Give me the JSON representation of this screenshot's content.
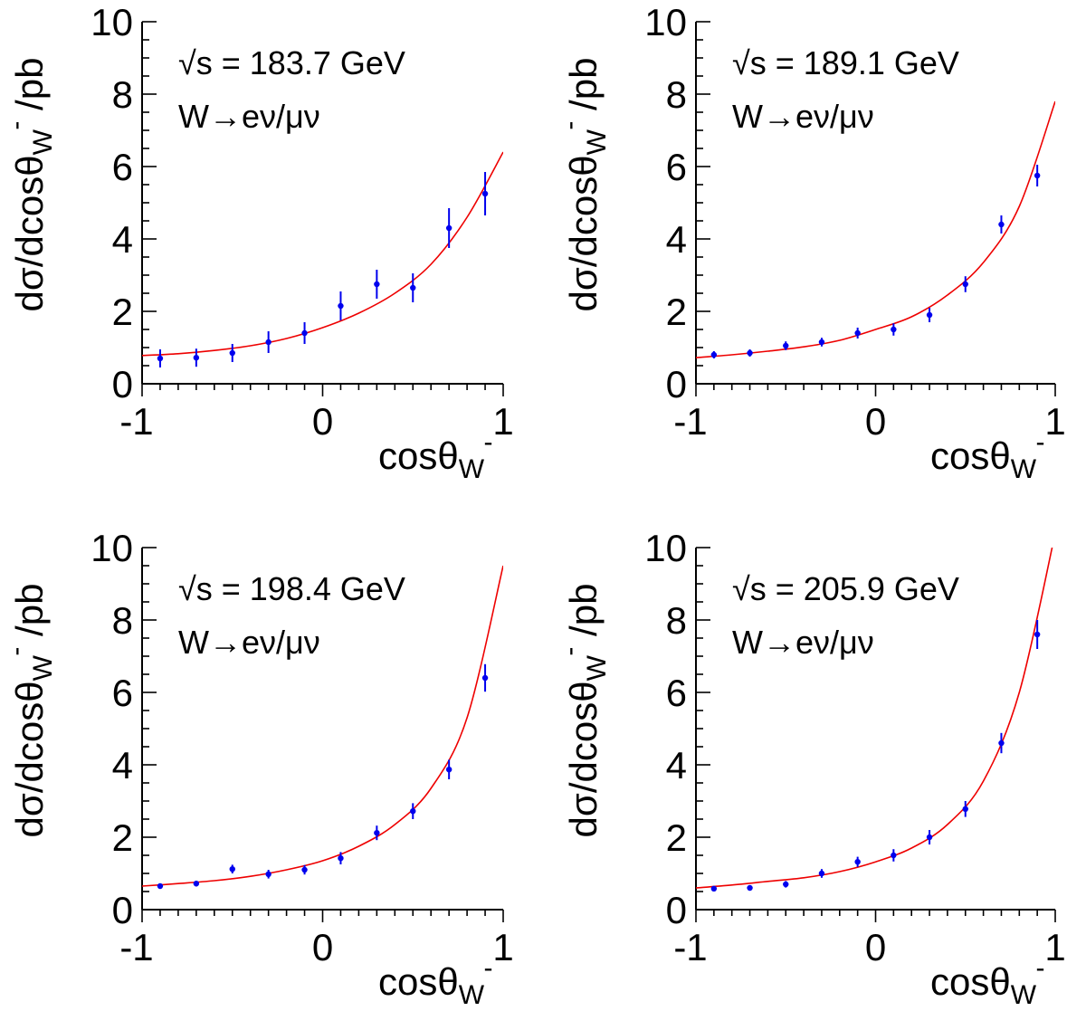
{
  "colors": {
    "axis": "#000000",
    "points": "#0000ee",
    "fit": "#ee0000"
  },
  "axes": {
    "ylabel": "dσ/dcosθ",
    "ylabel_sub": "W",
    "ylabel_sup": "-",
    "ylabel_unit": " /pb",
    "xlabel": "cosθ",
    "xlabel_sub": "W",
    "xlabel_sup": "-",
    "decay_label": "W→eν/μν",
    "xticks": [
      "-1",
      "0",
      "1"
    ],
    "yticks": [
      "0",
      "2",
      "4",
      "6",
      "8",
      "10"
    ]
  },
  "chart_data": [
    {
      "type": "scatter",
      "title": "√s = 183.7 GeV",
      "annotation": "W→eν/μν",
      "xlim": [
        -1,
        1
      ],
      "ylim": [
        0,
        10
      ],
      "x": [
        -0.9,
        -0.7,
        -0.5,
        -0.3,
        -0.1,
        0.1,
        0.3,
        0.5,
        0.7,
        0.9
      ],
      "y": [
        0.7,
        0.72,
        0.85,
        1.15,
        1.4,
        2.15,
        2.75,
        2.65,
        4.3,
        5.25
      ],
      "yerr": [
        0.25,
        0.25,
        0.25,
        0.3,
        0.3,
        0.4,
        0.4,
        0.4,
        0.55,
        0.6
      ],
      "fit": {
        "x": [
          -1,
          -0.8,
          -0.6,
          -0.4,
          -0.2,
          0,
          0.2,
          0.4,
          0.6,
          0.8,
          1
        ],
        "y": [
          0.78,
          0.83,
          0.92,
          1.05,
          1.25,
          1.55,
          1.95,
          2.5,
          3.3,
          4.6,
          6.4
        ]
      }
    },
    {
      "type": "scatter",
      "title": "√s = 189.1 GeV",
      "annotation": "W→eν/μν",
      "xlim": [
        -1,
        1
      ],
      "ylim": [
        0,
        10
      ],
      "x": [
        -0.9,
        -0.7,
        -0.5,
        -0.3,
        -0.1,
        0.1,
        0.3,
        0.5,
        0.7,
        0.9
      ],
      "y": [
        0.8,
        0.85,
        1.05,
        1.15,
        1.4,
        1.5,
        1.9,
        2.75,
        4.4,
        5.75
      ],
      "yerr": [
        0.1,
        0.1,
        0.12,
        0.12,
        0.15,
        0.17,
        0.2,
        0.22,
        0.25,
        0.3
      ],
      "fit": {
        "x": [
          -1,
          -0.8,
          -0.6,
          -0.4,
          -0.2,
          0,
          0.2,
          0.4,
          0.6,
          0.8,
          1
        ],
        "y": [
          0.72,
          0.8,
          0.9,
          1.02,
          1.2,
          1.5,
          1.85,
          2.45,
          3.35,
          4.9,
          7.8
        ]
      }
    },
    {
      "type": "scatter",
      "title": "√s = 198.4 GeV",
      "annotation": "W→eν/μν",
      "xlim": [
        -1,
        1
      ],
      "ylim": [
        0,
        10
      ],
      "x": [
        -0.9,
        -0.7,
        -0.5,
        -0.3,
        -0.1,
        0.1,
        0.3,
        0.5,
        0.7,
        0.9
      ],
      "y": [
        0.65,
        0.72,
        1.12,
        0.98,
        1.1,
        1.42,
        2.12,
        2.72,
        3.87,
        6.4
      ],
      "yerr": [
        0.07,
        0.08,
        0.12,
        0.12,
        0.13,
        0.17,
        0.2,
        0.22,
        0.27,
        0.38
      ],
      "fit": {
        "x": [
          -1,
          -0.8,
          -0.6,
          -0.4,
          -0.2,
          0,
          0.2,
          0.4,
          0.6,
          0.8,
          1
        ],
        "y": [
          0.65,
          0.72,
          0.8,
          0.92,
          1.1,
          1.35,
          1.75,
          2.35,
          3.35,
          5.3,
          9.5
        ]
      }
    },
    {
      "type": "scatter",
      "title": "√s = 205.9 GeV",
      "annotation": "W→eν/μν",
      "xlim": [
        -1,
        1
      ],
      "ylim": [
        0,
        10
      ],
      "x": [
        -0.9,
        -0.7,
        -0.5,
        -0.3,
        -0.1,
        0.1,
        0.3,
        0.5,
        0.7,
        0.9
      ],
      "y": [
        0.58,
        0.6,
        0.7,
        1.0,
        1.32,
        1.5,
        2.0,
        2.78,
        4.6,
        7.6
      ],
      "yerr": [
        0.07,
        0.07,
        0.09,
        0.12,
        0.14,
        0.17,
        0.2,
        0.22,
        0.28,
        0.4
      ],
      "fit": {
        "x": [
          -1,
          -0.8,
          -0.6,
          -0.4,
          -0.2,
          0,
          0.2,
          0.4,
          0.6,
          0.8,
          1
        ],
        "y": [
          0.6,
          0.68,
          0.78,
          0.88,
          1.05,
          1.32,
          1.7,
          2.35,
          3.55,
          6.0,
          10.4
        ]
      }
    }
  ]
}
